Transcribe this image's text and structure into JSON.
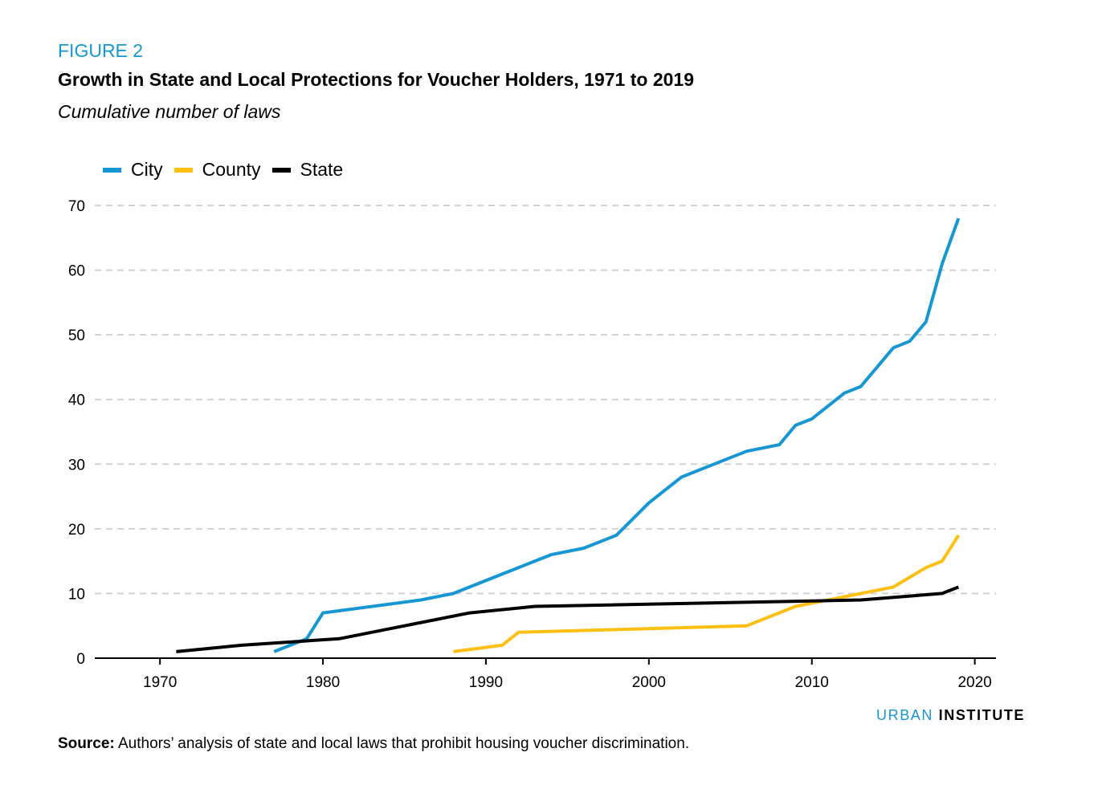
{
  "figure_label": "FIGURE 2",
  "chart_data": {
    "type": "line",
    "title": "Growth in State and Local Protections for Voucher Holders, 1971 to 2019",
    "subtitle": "Cumulative number of laws",
    "xlabel": "",
    "ylabel": "",
    "xlim": [
      1966,
      2021.3
    ],
    "ylim": [
      0,
      70
    ],
    "x_ticks": [
      1970,
      1980,
      1990,
      2000,
      2010,
      2020
    ],
    "y_ticks": [
      0,
      10,
      20,
      30,
      40,
      50,
      60,
      70
    ],
    "grid": "horizontal dashed",
    "legend_position": "top-left",
    "series": [
      {
        "name": "City",
        "color": "#1696d2",
        "x": [
          1977,
          1979,
          1980,
          1986,
          1988,
          1993,
          1994,
          1996,
          1998,
          2000,
          2002,
          2005,
          2006,
          2008,
          2009,
          2010,
          2012,
          2013,
          2015,
          2016,
          2017,
          2018,
          2019
        ],
        "values": [
          1,
          3,
          7,
          9,
          10,
          15,
          16,
          17,
          19,
          24,
          28,
          31,
          32,
          33,
          36,
          37,
          41,
          42,
          48,
          49,
          52,
          61,
          68
        ]
      },
      {
        "name": "County",
        "color": "#fdbf11",
        "x": [
          1988,
          1991,
          1992,
          2006,
          2009,
          2012,
          2015,
          2017,
          2018,
          2019
        ],
        "values": [
          1,
          2,
          4,
          5,
          8,
          9.5,
          11,
          14,
          15,
          19
        ]
      },
      {
        "name": "State",
        "color": "#000000",
        "x": [
          1971,
          1975,
          1981,
          1989,
          1993,
          2013,
          2018,
          2019
        ],
        "values": [
          1,
          2,
          3,
          7,
          8,
          9,
          10,
          11
        ]
      }
    ]
  },
  "branding": {
    "part1": "URBAN",
    "part2": "INSTITUTE"
  },
  "source": {
    "label": "Source:",
    "text": " Authors’ analysis of state and local laws that prohibit housing voucher discrimination."
  }
}
